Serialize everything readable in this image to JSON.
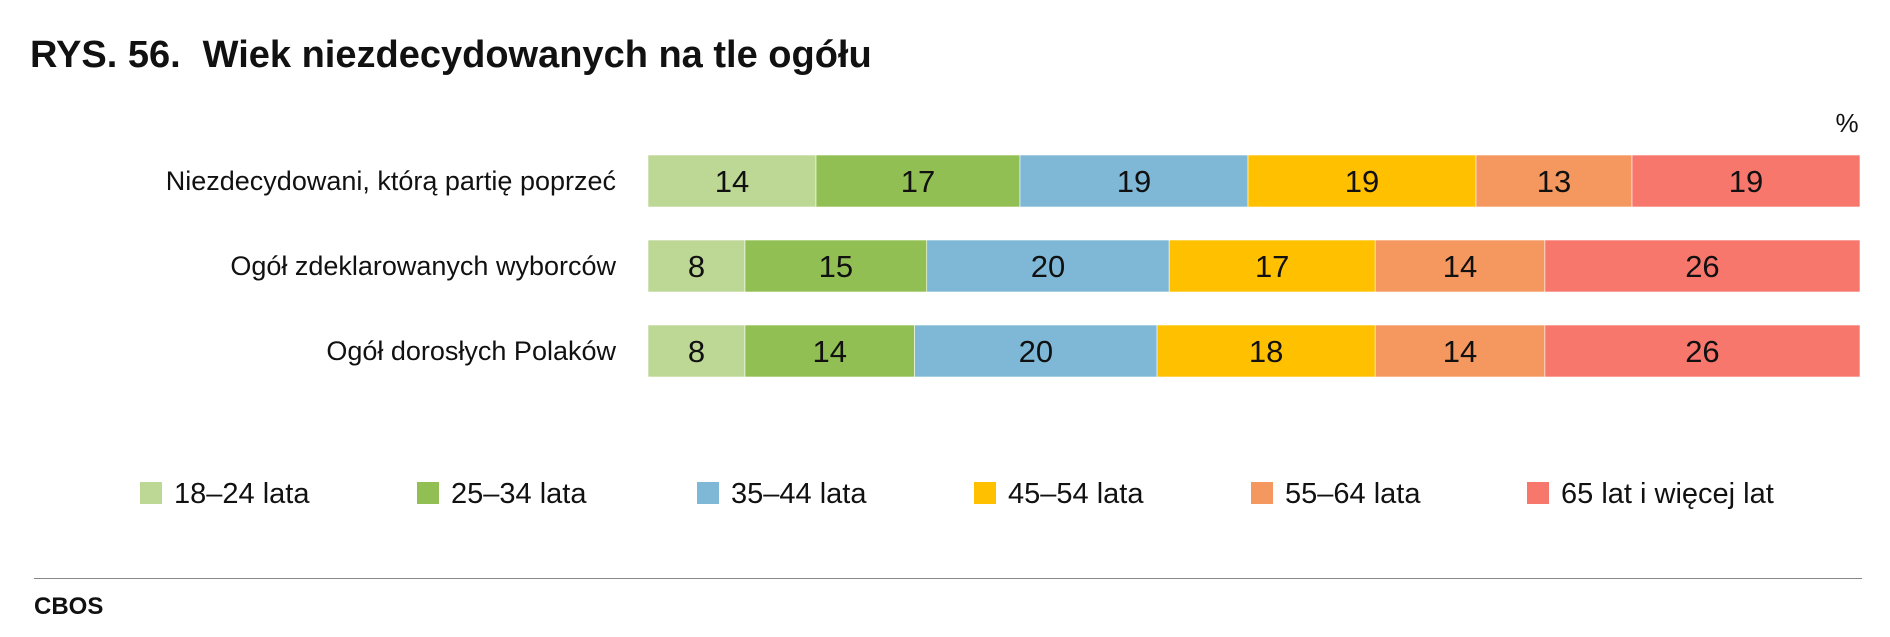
{
  "title": {
    "number": "RYS. 56.",
    "text": "Wiek niezdecydowanych na tle ogółu"
  },
  "source": "CBOS",
  "chart_data": {
    "type": "bar",
    "orientation": "horizontal",
    "stacked": true,
    "unit_label": "%",
    "categories": [
      "Niezdecydowani, którą partię poprzeć",
      "Ogół zdeklarowanych wyborców",
      "Ogół dorosłych Polaków"
    ],
    "series": [
      {
        "name": "18–24 lata",
        "color": "#bdd795",
        "values": [
          14,
          8,
          8
        ]
      },
      {
        "name": "25–34 lata",
        "color": "#92bf53",
        "values": [
          17,
          15,
          14
        ]
      },
      {
        "name": "35–44 lata",
        "color": "#7eb8d6",
        "values": [
          19,
          20,
          20
        ]
      },
      {
        "name": "45–54 lata",
        "color": "#ffc000",
        "values": [
          19,
          17,
          18
        ]
      },
      {
        "name": "55–64 lata",
        "color": "#f4985f",
        "values": [
          13,
          14,
          14
        ]
      },
      {
        "name": "65 lat i więcej lat",
        "color": "#f8776c",
        "values": [
          19,
          26,
          26
        ]
      }
    ],
    "legend_position": "bottom",
    "grid": false
  }
}
